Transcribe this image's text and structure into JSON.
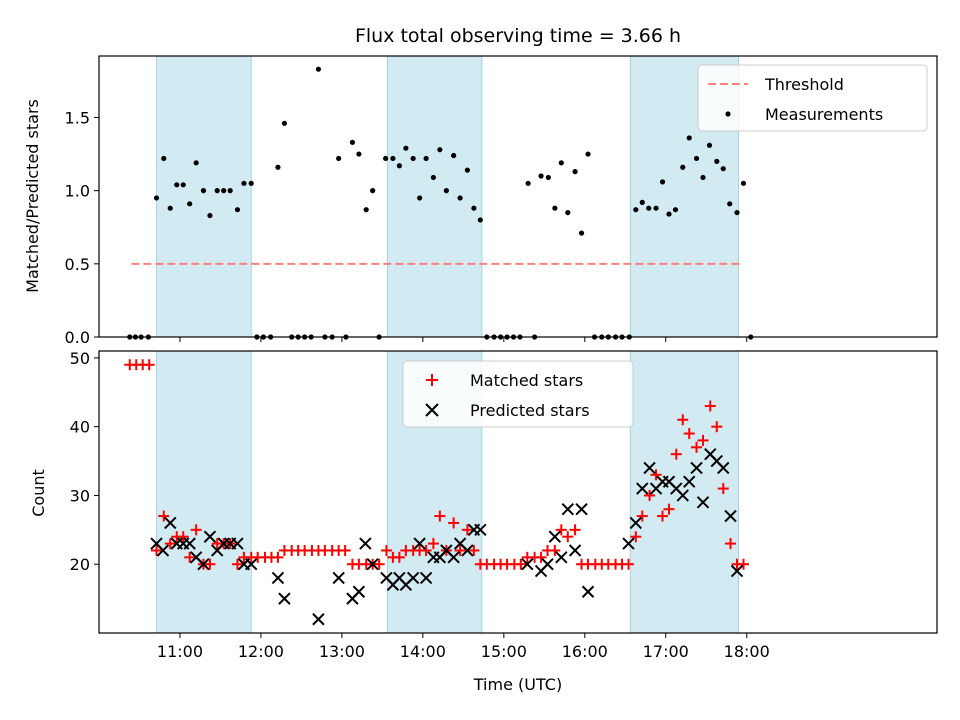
{
  "chart_data": [
    {
      "type": "scatter",
      "title": "Flux total observing time = 3.66 h",
      "xlabel": "",
      "ylabel": "Matched/Predicted stars",
      "xlim": [
        10.0,
        20.35
      ],
      "ylim": [
        0.0,
        1.92
      ],
      "yticks": [
        0.0,
        0.5,
        1.0,
        1.5
      ],
      "ytick_labels": [
        "0.0",
        "0.5",
        "1.0",
        "1.5"
      ],
      "legend_position": "top-right",
      "threshold": {
        "name": "Threshold",
        "value": 0.5,
        "x": [
          10.4,
          17.95
        ],
        "color": "#ff7f7f"
      },
      "series": [
        {
          "name": "Measurements",
          "color": "#000000",
          "points": [
            [
              10.38,
              0
            ],
            [
              10.45,
              0
            ],
            [
              10.52,
              0
            ],
            [
              10.61,
              0
            ],
            [
              10.71,
              0.95
            ],
            [
              10.8,
              1.22
            ],
            [
              10.88,
              0.88
            ],
            [
              10.96,
              1.04
            ],
            [
              11.04,
              1.04
            ],
            [
              11.12,
              0.91
            ],
            [
              11.2,
              1.19
            ],
            [
              11.29,
              1.0
            ],
            [
              11.37,
              0.83
            ],
            [
              11.46,
              1.0
            ],
            [
              11.54,
              1.0
            ],
            [
              11.62,
              1.0
            ],
            [
              11.71,
              0.87
            ],
            [
              11.79,
              1.05
            ],
            [
              11.88,
              1.05
            ],
            [
              11.95,
              0
            ],
            [
              12.03,
              0
            ],
            [
              12.12,
              0
            ],
            [
              12.21,
              1.16
            ],
            [
              12.29,
              1.46
            ],
            [
              12.38,
              0
            ],
            [
              12.46,
              0
            ],
            [
              12.54,
              0
            ],
            [
              12.62,
              0
            ],
            [
              12.71,
              1.83
            ],
            [
              12.79,
              0
            ],
            [
              12.88,
              0
            ],
            [
              12.96,
              1.22
            ],
            [
              13.05,
              0
            ],
            [
              13.13,
              1.33
            ],
            [
              13.21,
              1.25
            ],
            [
              13.3,
              0.87
            ],
            [
              13.38,
              1.0
            ],
            [
              13.46,
              0
            ],
            [
              13.54,
              1.22
            ],
            [
              13.63,
              1.22
            ],
            [
              13.71,
              1.17
            ],
            [
              13.79,
              1.29
            ],
            [
              13.88,
              1.22
            ],
            [
              13.96,
              0.95
            ],
            [
              14.04,
              1.22
            ],
            [
              14.13,
              1.09
            ],
            [
              14.21,
              1.28
            ],
            [
              14.29,
              1.0
            ],
            [
              14.38,
              1.24
            ],
            [
              14.46,
              0.95
            ],
            [
              14.55,
              1.14
            ],
            [
              14.63,
              0.88
            ],
            [
              14.71,
              0.8
            ],
            [
              14.79,
              0
            ],
            [
              14.88,
              0
            ],
            [
              14.96,
              0
            ],
            [
              15.04,
              0
            ],
            [
              15.12,
              0
            ],
            [
              15.2,
              0
            ],
            [
              15.3,
              1.05
            ],
            [
              15.38,
              0
            ],
            [
              15.46,
              1.1
            ],
            [
              15.55,
              1.09
            ],
            [
              15.63,
              0.88
            ],
            [
              15.71,
              1.19
            ],
            [
              15.79,
              0.85
            ],
            [
              15.88,
              1.13
            ],
            [
              15.96,
              0.71
            ],
            [
              16.04,
              1.25
            ],
            [
              16.12,
              0
            ],
            [
              16.21,
              0
            ],
            [
              16.29,
              0
            ],
            [
              16.38,
              0
            ],
            [
              16.46,
              0
            ],
            [
              16.55,
              0
            ],
            [
              16.63,
              0.87
            ],
            [
              16.71,
              0.92
            ],
            [
              16.79,
              0.88
            ],
            [
              16.88,
              0.88
            ],
            [
              16.96,
              1.06
            ],
            [
              17.04,
              0.84
            ],
            [
              17.12,
              0.87
            ],
            [
              17.21,
              1.16
            ],
            [
              17.29,
              1.36
            ],
            [
              17.38,
              1.22
            ],
            [
              17.46,
              1.09
            ],
            [
              17.54,
              1.31
            ],
            [
              17.63,
              1.2
            ],
            [
              17.71,
              1.15
            ],
            [
              17.79,
              0.91
            ],
            [
              17.88,
              0.85
            ],
            [
              17.96,
              1.05
            ],
            [
              18.05,
              0
            ]
          ]
        }
      ],
      "shaded_intervals": [
        [
          10.71,
          11.88
        ],
        [
          13.56,
          14.73
        ],
        [
          16.56,
          17.9
        ]
      ],
      "shade_color": "#add8e6"
    },
    {
      "type": "scatter",
      "title": "",
      "xlabel": "Time (UTC)",
      "ylabel": "Count",
      "xlim": [
        10.0,
        20.35
      ],
      "ylim": [
        10.0,
        51.0
      ],
      "yticks": [
        20,
        30,
        40,
        50
      ],
      "ytick_labels": [
        "20",
        "30",
        "40",
        "50"
      ],
      "xticks": [
        11,
        12,
        13,
        14,
        15,
        16,
        17,
        18
      ],
      "xtick_labels": [
        "11:00",
        "12:00",
        "13:00",
        "14:00",
        "15:00",
        "16:00",
        "17:00",
        "18:00"
      ],
      "legend_position": "top-center",
      "shaded_intervals": [
        [
          10.71,
          11.88
        ],
        [
          13.56,
          14.73
        ],
        [
          16.56,
          17.9
        ]
      ],
      "series": [
        {
          "name": "Matched stars",
          "marker": "+",
          "color": "#ff0000",
          "points": [
            [
              10.38,
              49
            ],
            [
              10.46,
              49
            ],
            [
              10.54,
              49
            ],
            [
              10.62,
              49
            ],
            [
              10.71,
              22
            ],
            [
              10.8,
              27
            ],
            [
              10.88,
              23
            ],
            [
              10.96,
              24
            ],
            [
              11.04,
              24
            ],
            [
              11.12,
              21
            ],
            [
              11.2,
              25
            ],
            [
              11.29,
              20
            ],
            [
              11.37,
              20
            ],
            [
              11.46,
              23
            ],
            [
              11.54,
              23
            ],
            [
              11.62,
              23
            ],
            [
              11.71,
              20
            ],
            [
              11.79,
              21
            ],
            [
              11.88,
              21
            ],
            [
              11.96,
              21
            ],
            [
              12.05,
              21
            ],
            [
              12.13,
              21
            ],
            [
              12.21,
              21
            ],
            [
              12.29,
              22
            ],
            [
              12.38,
              22
            ],
            [
              12.46,
              22
            ],
            [
              12.54,
              22
            ],
            [
              12.63,
              22
            ],
            [
              12.71,
              22
            ],
            [
              12.79,
              22
            ],
            [
              12.88,
              22
            ],
            [
              12.96,
              22
            ],
            [
              13.04,
              22
            ],
            [
              13.13,
              20
            ],
            [
              13.21,
              20
            ],
            [
              13.3,
              20
            ],
            [
              13.38,
              20
            ],
            [
              13.46,
              20
            ],
            [
              13.55,
              22
            ],
            [
              13.63,
              21
            ],
            [
              13.71,
              21
            ],
            [
              13.79,
              22
            ],
            [
              13.88,
              22
            ],
            [
              13.96,
              22
            ],
            [
              14.04,
              22
            ],
            [
              14.13,
              23
            ],
            [
              14.21,
              27
            ],
            [
              14.29,
              22
            ],
            [
              14.38,
              26
            ],
            [
              14.46,
              22
            ],
            [
              14.55,
              25
            ],
            [
              14.63,
              22
            ],
            [
              14.71,
              20
            ],
            [
              14.79,
              20
            ],
            [
              14.88,
              20
            ],
            [
              14.96,
              20
            ],
            [
              15.04,
              20
            ],
            [
              15.13,
              20
            ],
            [
              15.21,
              20
            ],
            [
              15.29,
              21
            ],
            [
              15.38,
              21
            ],
            [
              15.46,
              21
            ],
            [
              15.54,
              22
            ],
            [
              15.63,
              22
            ],
            [
              15.71,
              25
            ],
            [
              15.79,
              24
            ],
            [
              15.88,
              25
            ],
            [
              15.96,
              20
            ],
            [
              16.04,
              20
            ],
            [
              16.13,
              20
            ],
            [
              16.21,
              20
            ],
            [
              16.29,
              20
            ],
            [
              16.38,
              20
            ],
            [
              16.46,
              20
            ],
            [
              16.54,
              20
            ],
            [
              16.63,
              24
            ],
            [
              16.71,
              27
            ],
            [
              16.8,
              30
            ],
            [
              16.88,
              33
            ],
            [
              16.96,
              27
            ],
            [
              17.04,
              28
            ],
            [
              17.13,
              36
            ],
            [
              17.21,
              41
            ],
            [
              17.29,
              39
            ],
            [
              17.38,
              37
            ],
            [
              17.46,
              38
            ],
            [
              17.55,
              43
            ],
            [
              17.63,
              40
            ],
            [
              17.71,
              31
            ],
            [
              17.8,
              23
            ],
            [
              17.88,
              20
            ],
            [
              17.96,
              20
            ]
          ]
        },
        {
          "name": "Predicted stars",
          "marker": "x",
          "color": "#000000",
          "points": [
            [
              10.71,
              23
            ],
            [
              10.79,
              22
            ],
            [
              10.88,
              26
            ],
            [
              10.96,
              23
            ],
            [
              11.04,
              23
            ],
            [
              11.12,
              23
            ],
            [
              11.2,
              21
            ],
            [
              11.29,
              20
            ],
            [
              11.37,
              24
            ],
            [
              11.46,
              22
            ],
            [
              11.54,
              23
            ],
            [
              11.62,
              23
            ],
            [
              11.71,
              23
            ],
            [
              11.79,
              20
            ],
            [
              11.88,
              20
            ],
            [
              12.21,
              18
            ],
            [
              12.29,
              15
            ],
            [
              12.71,
              12
            ],
            [
              12.96,
              18
            ],
            [
              13.13,
              15
            ],
            [
              13.21,
              16
            ],
            [
              13.29,
              23
            ],
            [
              13.38,
              20
            ],
            [
              13.55,
              18
            ],
            [
              13.63,
              17
            ],
            [
              13.71,
              18
            ],
            [
              13.79,
              17
            ],
            [
              13.88,
              18
            ],
            [
              13.96,
              23
            ],
            [
              14.04,
              18
            ],
            [
              14.13,
              21
            ],
            [
              14.21,
              21
            ],
            [
              14.29,
              22
            ],
            [
              14.38,
              21
            ],
            [
              14.46,
              23
            ],
            [
              14.55,
              22
            ],
            [
              14.63,
              25
            ],
            [
              14.71,
              25
            ],
            [
              15.29,
              20
            ],
            [
              15.46,
              19
            ],
            [
              15.54,
              20
            ],
            [
              15.63,
              24
            ],
            [
              15.71,
              21
            ],
            [
              15.79,
              28
            ],
            [
              15.88,
              22
            ],
            [
              15.96,
              28
            ],
            [
              16.04,
              16
            ],
            [
              16.54,
              23
            ],
            [
              16.63,
              26
            ],
            [
              16.71,
              31
            ],
            [
              16.8,
              34
            ],
            [
              16.88,
              31
            ],
            [
              16.96,
              32
            ],
            [
              17.04,
              32
            ],
            [
              17.13,
              31
            ],
            [
              17.21,
              30
            ],
            [
              17.29,
              32
            ],
            [
              17.38,
              34
            ],
            [
              17.46,
              29
            ],
            [
              17.55,
              36
            ],
            [
              17.63,
              35
            ],
            [
              17.71,
              34
            ],
            [
              17.8,
              27
            ],
            [
              17.88,
              19
            ]
          ]
        }
      ]
    }
  ]
}
